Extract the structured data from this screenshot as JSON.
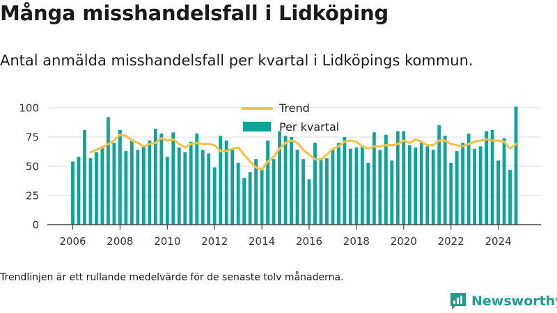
{
  "header": {
    "title": "Många misshandelsfall i Lidköping",
    "subtitle": "Antal anmälda misshandelsfall per kvartal i Lidköpings kommun."
  },
  "footer": {
    "note": "Trendlinjen är ett rullande medelvärde för de senaste tolv månaderna.",
    "brand": "Newsworthy"
  },
  "colors": {
    "bar": "#0ea597",
    "trend": "#f5c24c",
    "grid": "#d9d9d9",
    "axis": "#444444",
    "brand": "#1f9e8d"
  },
  "chart_data": {
    "type": "bar",
    "title": "",
    "xlabel": "",
    "ylabel": "",
    "ylim": [
      0,
      100
    ],
    "yticks": [
      0,
      25,
      50,
      75,
      100
    ],
    "xticks": [
      "2006",
      "2008",
      "2010",
      "2012",
      "2014",
      "2016",
      "2018",
      "2020",
      "2022",
      "2024"
    ],
    "grid": true,
    "legend": {
      "position": "top-center",
      "entries": [
        "Trend",
        "Per kvartal"
      ]
    },
    "quarters": [
      "2006 Q1",
      "2006 Q2",
      "2006 Q3",
      "2006 Q4",
      "2007 Q1",
      "2007 Q2",
      "2007 Q3",
      "2007 Q4",
      "2008 Q1",
      "2008 Q2",
      "2008 Q3",
      "2008 Q4",
      "2009 Q1",
      "2009 Q2",
      "2009 Q3",
      "2009 Q4",
      "2010 Q1",
      "2010 Q2",
      "2010 Q3",
      "2010 Q4",
      "2011 Q1",
      "2011 Q2",
      "2011 Q3",
      "2011 Q4",
      "2012 Q1",
      "2012 Q2",
      "2012 Q3",
      "2012 Q4",
      "2013 Q1",
      "2013 Q2",
      "2013 Q3",
      "2013 Q4",
      "2014 Q1",
      "2014 Q2",
      "2014 Q3",
      "2014 Q4",
      "2015 Q1",
      "2015 Q2",
      "2015 Q3",
      "2015 Q4",
      "2016 Q1",
      "2016 Q2",
      "2016 Q3",
      "2016 Q4",
      "2017 Q1",
      "2017 Q2",
      "2017 Q3",
      "2017 Q4",
      "2018 Q1",
      "2018 Q2",
      "2018 Q3",
      "2018 Q4",
      "2019 Q1",
      "2019 Q2",
      "2019 Q3",
      "2019 Q4",
      "2020 Q1",
      "2020 Q2",
      "2020 Q3",
      "2020 Q4",
      "2021 Q1",
      "2021 Q2",
      "2021 Q3",
      "2021 Q4",
      "2022 Q1",
      "2022 Q2",
      "2022 Q3",
      "2022 Q4",
      "2023 Q1",
      "2023 Q2",
      "2023 Q3",
      "2023 Q4",
      "2024 Q1",
      "2024 Q2",
      "2024 Q3",
      "2024 Q4"
    ],
    "series": [
      {
        "name": "Per kvartal",
        "type": "bar",
        "values": [
          54,
          58,
          81,
          57,
          62,
          67,
          92,
          70,
          81,
          63,
          73,
          64,
          67,
          72,
          82,
          78,
          58,
          79,
          66,
          62,
          71,
          78,
          64,
          61,
          49,
          76,
          72,
          64,
          53,
          40,
          45,
          56,
          48,
          72,
          56,
          80,
          76,
          75,
          64,
          56,
          39,
          70,
          57,
          57,
          65,
          70,
          75,
          65,
          66,
          68,
          53,
          79,
          64,
          77,
          55,
          80,
          80,
          68,
          66,
          70,
          67,
          64,
          85,
          76,
          53,
          63,
          70,
          78,
          65,
          67,
          80,
          81,
          55,
          74,
          47,
          101
        ]
      },
      {
        "name": "Trend",
        "type": "line",
        "values": [
          null,
          null,
          null,
          62,
          64,
          66,
          69,
          72,
          77,
          76,
          72,
          70,
          67,
          69,
          70,
          74,
          72,
          73,
          69,
          66,
          69,
          70,
          69,
          69,
          68,
          63,
          63,
          65,
          66,
          60,
          54,
          49,
          47,
          54,
          58,
          65,
          70,
          72,
          70,
          64,
          60,
          56,
          56,
          60,
          65,
          67,
          71,
          72,
          71,
          67,
          65,
          67,
          67,
          68,
          68,
          69,
          72,
          70,
          73,
          71,
          68,
          68,
          72,
          72,
          69,
          68,
          67,
          69,
          71,
          72,
          73,
          72,
          72,
          71,
          65,
          69
        ]
      }
    ]
  }
}
